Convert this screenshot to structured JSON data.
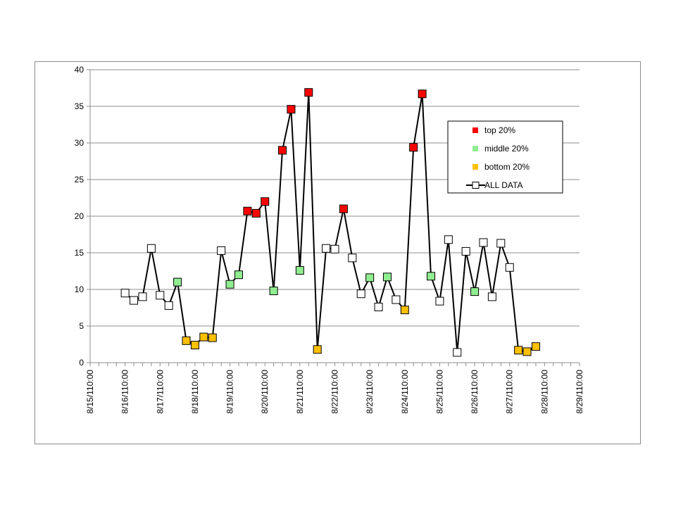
{
  "chart_data": {
    "type": "line",
    "x_tick_labels": [
      "8/15/110:00",
      "8/16/110:00",
      "8/17/110:00",
      "8/18/110:00",
      "8/19/110:00",
      "8/20/110:00",
      "8/21/110:00",
      "8/22/110:00",
      "8/23/110:00",
      "8/24/110:00",
      "8/25/110:00",
      "8/26/110:00",
      "8/27/110:00",
      "8/28/110:00",
      "8/29/110:00"
    ],
    "xlim": [
      "8/15/11 0:00",
      "8/29/11 0:00"
    ],
    "ylim": [
      0,
      40
    ],
    "y_ticks": [
      0,
      5,
      10,
      15,
      20,
      25,
      30,
      35,
      40
    ],
    "grid": "horizontal",
    "legend_position": "right",
    "legend": [
      {
        "label": "top 20%",
        "marker": "filled-square",
        "color": "#ff0000"
      },
      {
        "label": "middle 20%",
        "marker": "filled-square",
        "color": "#90ee90"
      },
      {
        "label": "bottom 20%",
        "marker": "filled-square",
        "color": "#ffc000"
      },
      {
        "label": "ALL DATA",
        "marker": "open-square-line",
        "color": "#000000"
      }
    ],
    "series": [
      {
        "name": "ALL DATA",
        "line_color": "#000000",
        "points": [
          {
            "x": "8/16/11 0:00",
            "y": 9.5,
            "group": "all"
          },
          {
            "x": "8/16/11 6:00",
            "y": 8.5,
            "group": "all"
          },
          {
            "x": "8/16/11 12:00",
            "y": 9.0,
            "group": "all"
          },
          {
            "x": "8/16/11 18:00",
            "y": 15.6,
            "group": "all"
          },
          {
            "x": "8/17/11 0:00",
            "y": 9.2,
            "group": "all"
          },
          {
            "x": "8/17/11 6:00",
            "y": 7.8,
            "group": "all"
          },
          {
            "x": "8/17/11 12:00",
            "y": 11.0,
            "group": "middle"
          },
          {
            "x": "8/17/11 18:00",
            "y": 3.0,
            "group": "bottom"
          },
          {
            "x": "8/18/11 0:00",
            "y": 2.4,
            "group": "bottom"
          },
          {
            "x": "8/18/11 6:00",
            "y": 3.5,
            "group": "bottom"
          },
          {
            "x": "8/18/11 12:00",
            "y": 3.4,
            "group": "bottom"
          },
          {
            "x": "8/18/11 18:00",
            "y": 15.3,
            "group": "all"
          },
          {
            "x": "8/19/11 0:00",
            "y": 10.7,
            "group": "middle"
          },
          {
            "x": "8/19/11 6:00",
            "y": 12.0,
            "group": "middle"
          },
          {
            "x": "8/19/11 12:00",
            "y": 20.7,
            "group": "top"
          },
          {
            "x": "8/19/11 18:00",
            "y": 20.4,
            "group": "top"
          },
          {
            "x": "8/20/11 0:00",
            "y": 22.0,
            "group": "top"
          },
          {
            "x": "8/20/11 6:00",
            "y": 9.8,
            "group": "middle"
          },
          {
            "x": "8/20/11 12:00",
            "y": 29.0,
            "group": "top"
          },
          {
            "x": "8/20/11 18:00",
            "y": 34.6,
            "group": "top"
          },
          {
            "x": "8/21/11 0:00",
            "y": 12.6,
            "group": "middle"
          },
          {
            "x": "8/21/11 6:00",
            "y": 36.9,
            "group": "top"
          },
          {
            "x": "8/21/11 12:00",
            "y": 1.8,
            "group": "bottom"
          },
          {
            "x": "8/21/11 18:00",
            "y": 15.6,
            "group": "all"
          },
          {
            "x": "8/22/11 0:00",
            "y": 15.5,
            "group": "all"
          },
          {
            "x": "8/22/11 6:00",
            "y": 21.0,
            "group": "top"
          },
          {
            "x": "8/22/11 12:00",
            "y": 14.3,
            "group": "all"
          },
          {
            "x": "8/22/11 18:00",
            "y": 9.4,
            "group": "all"
          },
          {
            "x": "8/23/11 0:00",
            "y": 11.6,
            "group": "middle"
          },
          {
            "x": "8/23/11 6:00",
            "y": 7.6,
            "group": "all"
          },
          {
            "x": "8/23/11 12:00",
            "y": 11.7,
            "group": "middle"
          },
          {
            "x": "8/23/11 18:00",
            "y": 8.6,
            "group": "all"
          },
          {
            "x": "8/24/11 0:00",
            "y": 7.2,
            "group": "bottom"
          },
          {
            "x": "8/24/11 6:00",
            "y": 29.4,
            "group": "top"
          },
          {
            "x": "8/24/11 12:00",
            "y": 36.7,
            "group": "top"
          },
          {
            "x": "8/24/11 18:00",
            "y": 11.8,
            "group": "middle"
          },
          {
            "x": "8/25/11 0:00",
            "y": 8.4,
            "group": "all"
          },
          {
            "x": "8/25/11 6:00",
            "y": 16.8,
            "group": "all"
          },
          {
            "x": "8/25/11 12:00",
            "y": 1.4,
            "group": "all"
          },
          {
            "x": "8/25/11 18:00",
            "y": 15.2,
            "group": "all"
          },
          {
            "x": "8/26/11 0:00",
            "y": 9.7,
            "group": "middle"
          },
          {
            "x": "8/26/11 6:00",
            "y": 16.4,
            "group": "all"
          },
          {
            "x": "8/26/11 12:00",
            "y": 9.0,
            "group": "all"
          },
          {
            "x": "8/26/11 18:00",
            "y": 16.3,
            "group": "all"
          },
          {
            "x": "8/27/11 0:00",
            "y": 13.0,
            "group": "all"
          },
          {
            "x": "8/27/11 6:00",
            "y": 1.7,
            "group": "bottom"
          },
          {
            "x": "8/27/11 12:00",
            "y": 1.5,
            "group": "bottom"
          },
          {
            "x": "8/27/11 18:00",
            "y": 2.2,
            "group": "bottom"
          }
        ]
      }
    ],
    "group_colors": {
      "top": "#ff0000",
      "middle": "#90ee90",
      "bottom": "#ffc000",
      "all": "#ffffff"
    }
  }
}
